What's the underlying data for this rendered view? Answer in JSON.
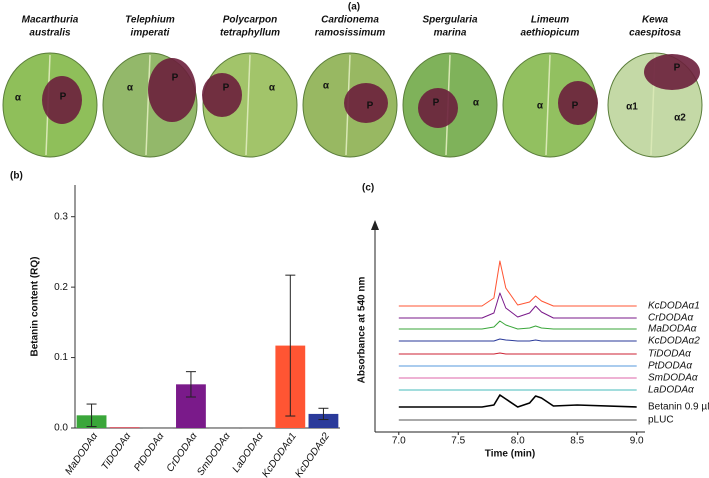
{
  "panel_a": {
    "label": "(a)",
    "leaves": [
      {
        "name": [
          "Macarthuria",
          "australis"
        ],
        "spots": [
          "α",
          "P"
        ]
      },
      {
        "name": [
          "Telephium",
          "imperati"
        ],
        "spots": [
          "α",
          "P"
        ]
      },
      {
        "name": [
          "Polycarpon",
          "tetraphyllum"
        ],
        "spots": [
          "P",
          "α"
        ]
      },
      {
        "name": [
          "Cardionema",
          "ramosissimum"
        ],
        "spots": [
          "α",
          "P"
        ]
      },
      {
        "name": [
          "Spergularia",
          "marina"
        ],
        "spots": [
          "P",
          "α"
        ]
      },
      {
        "name": [
          "Limeum",
          "aethiopicum"
        ],
        "spots": [
          "α",
          "P"
        ]
      },
      {
        "name": [
          "Kewa",
          "caespitosa"
        ],
        "spots": [
          "P",
          "α1",
          "α2"
        ]
      }
    ]
  },
  "chart_data": [
    {
      "type": "bar",
      "label": "(b)",
      "y_label": "Betanin content (RQ)",
      "categories": [
        "MaDODAα",
        "TiDODAα",
        "PtDODAα",
        "CrDODAα",
        "SmDODAα",
        "LaDODAα",
        "KcDODAα1",
        "KcDODAα2"
      ],
      "values": [
        0.018,
        0.001,
        0,
        0.062,
        0,
        0,
        0.117,
        0.02
      ],
      "errors": [
        0.016,
        0,
        0,
        0.018,
        0,
        0,
        0.1,
        0.008
      ],
      "colors": [
        "#3aa63a",
        "#cc2233",
        "#888888",
        "#7a1a8a",
        "#888888",
        "#888888",
        "#ff5533",
        "#2a3a9a"
      ],
      "ylim": [
        0,
        0.345
      ],
      "yticks": [
        {
          "value": 0,
          "label": "0.0"
        },
        0.1,
        0.2,
        0.3
      ]
    },
    {
      "type": "line",
      "label": "(c)",
      "x_label": "Time (min)",
      "y_label": "Absorbance at 540 nm",
      "x": [
        7.0,
        7.7,
        7.8,
        7.85,
        7.9,
        8.0,
        8.1,
        8.15,
        8.2,
        8.3,
        8.5,
        9.0
      ],
      "xlim": [
        6.8,
        9.07
      ],
      "xticks": [
        {
          "value": 7.0,
          "label": "7.0"
        },
        7.5,
        {
          "value": 8.0,
          "label": "8.0"
        },
        8.5,
        {
          "value": 9.0,
          "label": "9.0"
        }
      ],
      "series": [
        {
          "name": "KcDODAα1",
          "color": "#ff5533",
          "values": [
            0,
            0,
            8,
            45,
            18,
            1,
            4,
            10,
            5,
            0,
            0,
            0
          ]
        },
        {
          "name": "CrDODAα",
          "color": "#7a1a8a",
          "values": [
            0,
            0,
            5,
            25,
            10,
            1,
            5,
            12,
            6,
            0,
            0,
            0
          ]
        },
        {
          "name": "MaDODAα",
          "color": "#3aa63a",
          "values": [
            0,
            0,
            2,
            8,
            4,
            0,
            1,
            3,
            1,
            0,
            0,
            0
          ]
        },
        {
          "name": "KcDODAα2",
          "color": "#2a3a9a",
          "values": [
            0,
            0,
            0,
            2,
            1,
            0,
            0,
            1,
            0,
            0,
            0,
            0
          ]
        },
        {
          "name": "TiDODAα",
          "color": "#cc2233",
          "values": [
            0,
            0,
            0,
            1,
            0,
            0,
            0,
            0,
            0,
            0,
            0,
            0
          ]
        },
        {
          "name": "PtDODAα",
          "color": "#5599dd",
          "values": [
            0,
            0,
            0,
            0,
            0,
            0,
            0,
            0,
            0,
            0,
            0,
            0
          ]
        },
        {
          "name": "SmDODAα",
          "color": "#dd66aa",
          "values": [
            0,
            0,
            0,
            0,
            0,
            0,
            0,
            0,
            0,
            0,
            0,
            0
          ]
        },
        {
          "name": "LaDODAα",
          "color": "#44bbbb",
          "values": [
            0,
            0,
            0,
            0,
            0,
            0,
            0,
            0,
            0,
            0,
            0,
            0
          ]
        },
        {
          "name": "Betanin 0.9 µM",
          "color": "#000000",
          "values": [
            0,
            0,
            2,
            12,
            8,
            0,
            4,
            11,
            9,
            1,
            2,
            0
          ]
        },
        {
          "name": "pLUC",
          "color": "#555555",
          "values": [
            0,
            0,
            0,
            0,
            0,
            0,
            0,
            0,
            0,
            0,
            0,
            0
          ]
        }
      ]
    }
  ]
}
